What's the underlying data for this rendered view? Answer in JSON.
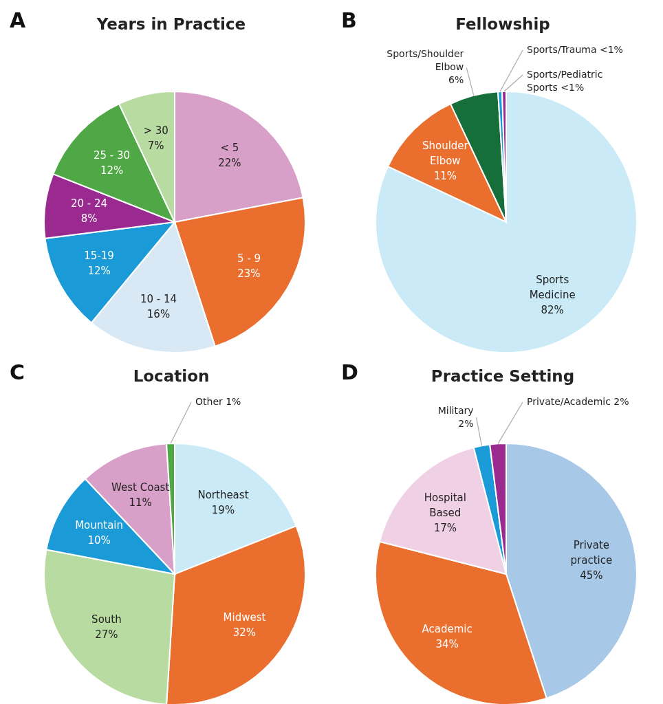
{
  "chart_data": [
    {
      "type": "pie",
      "title": "Years in Practice",
      "annotations": [
        "A"
      ],
      "categories": [
        "< 5",
        "5 - 9",
        "10 - 14",
        "15-19",
        "20 - 24",
        "25 - 30",
        "> 30"
      ],
      "values": [
        22,
        23,
        16,
        12,
        8,
        12,
        7
      ],
      "value_labels": [
        "22%",
        "23%",
        "16%",
        "12%",
        "8%",
        "12%",
        "7%"
      ],
      "colors": [
        "#d8a0c8",
        "#ea6f2f",
        "#d9e8f5",
        "#1a9ad6",
        "#9b2a90",
        "#4fa845",
        "#b7dba0"
      ]
    },
    {
      "type": "pie",
      "title": "Fellowship",
      "annotations": [
        "B"
      ],
      "categories": [
        "Sports\nMedicine",
        "Shoulder\nElbow",
        "Sports/Shoulder\nElbow",
        "Sports/Trauma",
        "Sports/Pediatric\nSports"
      ],
      "values": [
        82,
        11,
        6,
        0.5,
        0.5
      ],
      "value_labels": [
        "82%",
        "11%",
        "6%",
        "<1%",
        "<1%"
      ],
      "colors": [
        "#c9eaf6",
        "#ea6f2f",
        "#166e3a",
        "#1a9ad6",
        "#9b2a90"
      ]
    },
    {
      "type": "pie",
      "title": "Location",
      "annotations": [
        "C"
      ],
      "categories": [
        "Northeast",
        "Midwest",
        "South",
        "Mountain",
        "West Coast",
        "Other"
      ],
      "values": [
        19,
        32,
        27,
        10,
        11,
        1
      ],
      "value_labels": [
        "19%",
        "32%",
        "27%",
        "10%",
        "11%",
        "1%"
      ],
      "colors": [
        "#c9eaf6",
        "#ea6f2f",
        "#b7dba0",
        "#1a9ad6",
        "#d8a0c8",
        "#4fa845"
      ]
    },
    {
      "type": "pie",
      "title": "Practice Setting",
      "annotations": [
        "D"
      ],
      "categories": [
        "Private\npractice",
        "Academic",
        "Hospital\nBased",
        "Military",
        "Private/Academic"
      ],
      "values": [
        45,
        34,
        17,
        2,
        2
      ],
      "value_labels": [
        "45%",
        "34%",
        "17%",
        "2%",
        "2%"
      ],
      "colors": [
        "#a8c8e8",
        "#ea6f2f",
        "#f0d0e4",
        "#1a9ad6",
        "#9b2a90"
      ]
    }
  ]
}
